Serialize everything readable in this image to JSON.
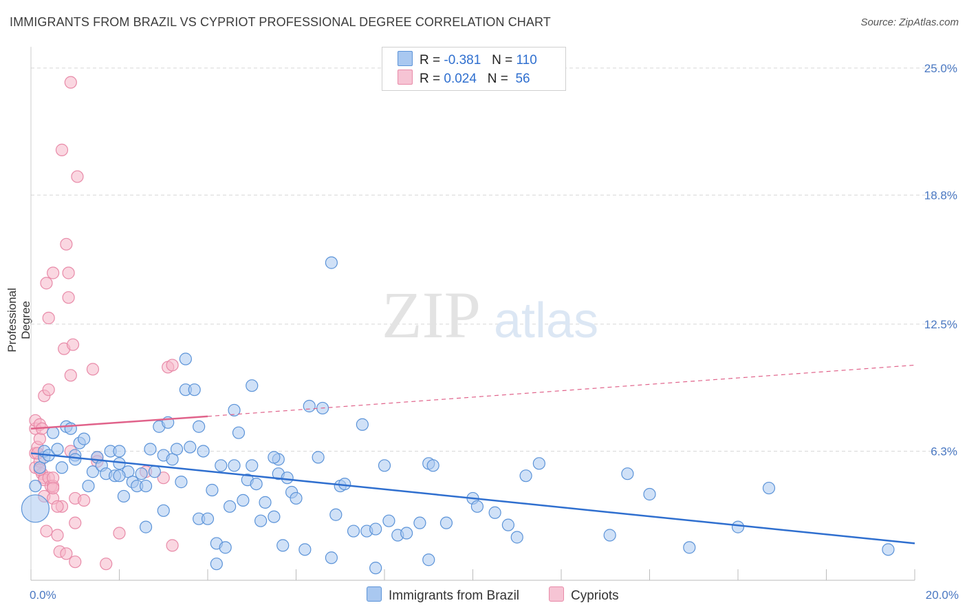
{
  "title": "IMMIGRANTS FROM BRAZIL VS CYPRIOT PROFESSIONAL DEGREE CORRELATION CHART",
  "source": "Source: ZipAtlas.com",
  "watermark": {
    "zip": "ZIP",
    "atlas": "atlas"
  },
  "colors": {
    "blue_fill": "#a9c8f0",
    "blue_stroke": "#5b93d8",
    "blue_line": "#2f6fcf",
    "pink_fill": "#f6b6c9",
    "pink_stroke": "#e88aa8",
    "pink_line": "#e0628a",
    "tick_text": "#4a78c2",
    "grid": "#d8d8d8"
  },
  "legend": {
    "rows": [
      {
        "r_label": "R =",
        "r_value": "-0.381",
        "n_label": "N =",
        "n_value": "110"
      },
      {
        "r_label": "R =",
        "r_value": "0.024",
        "n_label": "N =",
        "n_value": "56"
      }
    ]
  },
  "bottom_legend": {
    "series_a": "Immigrants from Brazil",
    "series_b": "Cypriots"
  },
  "chart_data": {
    "type": "scatter",
    "title": "IMMIGRANTS FROM BRAZIL VS CYPRIOT PROFESSIONAL DEGREE CORRELATION CHART",
    "xlabel": "",
    "ylabel": "Professional Degree",
    "xlim": [
      0,
      20
    ],
    "ylim": [
      0,
      25.8
    ],
    "x_tick_labels": [
      "0.0%",
      "20.0%"
    ],
    "y_ticks": [
      6.3,
      12.5,
      18.8,
      25.0
    ],
    "y_tick_labels": [
      "6.3%",
      "12.5%",
      "18.8%",
      "25.0%"
    ],
    "legend_position": "top-center",
    "grid": true,
    "series": [
      {
        "name": "Immigrants from Brazil",
        "r": -0.381,
        "n": 110,
        "trend": {
          "x0": 0.0,
          "y0": 6.2,
          "x1": 20.0,
          "y1": 1.8
        },
        "points": [
          [
            0.1,
            3.5
          ],
          [
            0.1,
            4.6
          ],
          [
            0.2,
            5.5
          ],
          [
            0.3,
            6.0
          ],
          [
            0.3,
            6.3
          ],
          [
            0.4,
            6.1
          ],
          [
            0.5,
            7.2
          ],
          [
            0.6,
            6.4
          ],
          [
            0.7,
            5.5
          ],
          [
            0.8,
            7.5
          ],
          [
            0.9,
            7.4
          ],
          [
            1.0,
            6.1
          ],
          [
            1.1,
            6.7
          ],
          [
            1.2,
            6.9
          ],
          [
            1.3,
            4.6
          ],
          [
            1.4,
            5.3
          ],
          [
            1.5,
            6.0
          ],
          [
            1.6,
            5.6
          ],
          [
            1.7,
            5.2
          ],
          [
            1.8,
            6.3
          ],
          [
            1.9,
            5.1
          ],
          [
            2.0,
            6.3
          ],
          [
            2.0,
            5.7
          ],
          [
            2.1,
            4.1
          ],
          [
            2.2,
            5.3
          ],
          [
            2.3,
            4.8
          ],
          [
            2.4,
            4.6
          ],
          [
            2.5,
            5.2
          ],
          [
            2.6,
            4.6
          ],
          [
            2.6,
            2.6
          ],
          [
            2.7,
            6.4
          ],
          [
            2.8,
            5.3
          ],
          [
            2.9,
            7.5
          ],
          [
            3.0,
            6.1
          ],
          [
            3.0,
            3.4
          ],
          [
            3.1,
            7.7
          ],
          [
            3.2,
            5.9
          ],
          [
            3.3,
            6.4
          ],
          [
            3.4,
            4.8
          ],
          [
            3.5,
            10.8
          ],
          [
            3.5,
            9.3
          ],
          [
            3.6,
            6.5
          ],
          [
            3.7,
            9.3
          ],
          [
            3.8,
            7.5
          ],
          [
            3.8,
            3.0
          ],
          [
            3.9,
            6.3
          ],
          [
            4.0,
            3.0
          ],
          [
            4.1,
            4.4
          ],
          [
            4.2,
            1.8
          ],
          [
            4.2,
            0.8
          ],
          [
            4.3,
            5.6
          ],
          [
            4.4,
            1.6
          ],
          [
            4.5,
            3.6
          ],
          [
            4.6,
            5.6
          ],
          [
            4.6,
            8.3
          ],
          [
            4.7,
            7.2
          ],
          [
            4.8,
            3.9
          ],
          [
            4.9,
            4.9
          ],
          [
            5.0,
            5.6
          ],
          [
            5.0,
            9.5
          ],
          [
            5.1,
            4.7
          ],
          [
            5.2,
            2.9
          ],
          [
            5.3,
            3.8
          ],
          [
            5.5,
            3.1
          ],
          [
            5.6,
            5.9
          ],
          [
            5.6,
            5.2
          ],
          [
            5.7,
            1.7
          ],
          [
            5.8,
            5.0
          ],
          [
            5.9,
            4.3
          ],
          [
            6.0,
            4.0
          ],
          [
            6.2,
            1.5
          ],
          [
            6.3,
            8.5
          ],
          [
            6.5,
            6.0
          ],
          [
            6.6,
            8.4
          ],
          [
            6.8,
            1.1
          ],
          [
            6.8,
            15.5
          ],
          [
            6.9,
            3.2
          ],
          [
            7.0,
            4.6
          ],
          [
            7.1,
            4.7
          ],
          [
            7.3,
            2.4
          ],
          [
            7.5,
            7.6
          ],
          [
            7.6,
            2.4
          ],
          [
            7.8,
            2.5
          ],
          [
            7.8,
            0.6
          ],
          [
            8.0,
            5.6
          ],
          [
            8.1,
            2.9
          ],
          [
            8.3,
            2.2
          ],
          [
            8.5,
            2.3
          ],
          [
            8.8,
            2.8
          ],
          [
            9.0,
            1.0
          ],
          [
            9.0,
            5.7
          ],
          [
            9.1,
            5.6
          ],
          [
            9.4,
            2.8
          ],
          [
            10.0,
            4.0
          ],
          [
            10.1,
            3.6
          ],
          [
            10.5,
            3.3
          ],
          [
            10.8,
            2.7
          ],
          [
            11.0,
            2.1
          ],
          [
            11.2,
            5.1
          ],
          [
            11.5,
            5.7
          ],
          [
            13.1,
            2.2
          ],
          [
            13.5,
            5.2
          ],
          [
            14.0,
            4.2
          ],
          [
            14.9,
            1.6
          ],
          [
            16.0,
            2.6
          ],
          [
            16.7,
            4.5
          ],
          [
            19.4,
            1.5
          ],
          [
            2.0,
            5.1
          ],
          [
            1.0,
            5.9
          ],
          [
            5.5,
            6.0
          ]
        ]
      },
      {
        "name": "Cypriots",
        "r": 0.024,
        "n": 56,
        "trend": {
          "x0": 0.0,
          "y0": 7.4,
          "x1": 4.0,
          "y1": 8.0
        },
        "trend_dashed": {
          "x0": 4.0,
          "y0": 8.0,
          "x1": 20.0,
          "y1": 10.5
        },
        "points": [
          [
            0.1,
            5.5
          ],
          [
            0.1,
            6.2
          ],
          [
            0.1,
            7.4
          ],
          [
            0.1,
            7.8
          ],
          [
            0.15,
            6.5
          ],
          [
            0.2,
            5.8
          ],
          [
            0.2,
            7.6
          ],
          [
            0.2,
            6.9
          ],
          [
            0.25,
            5.2
          ],
          [
            0.3,
            5.0
          ],
          [
            0.3,
            4.9
          ],
          [
            0.3,
            4.1
          ],
          [
            0.3,
            9.0
          ],
          [
            0.35,
            2.4
          ],
          [
            0.35,
            14.5
          ],
          [
            0.4,
            5.0
          ],
          [
            0.4,
            9.3
          ],
          [
            0.4,
            12.8
          ],
          [
            0.45,
            4.6
          ],
          [
            0.5,
            4.6
          ],
          [
            0.5,
            5.0
          ],
          [
            0.5,
            4.0
          ],
          [
            0.5,
            15.0
          ],
          [
            0.6,
            2.2
          ],
          [
            0.65,
            1.4
          ],
          [
            0.7,
            3.6
          ],
          [
            0.7,
            21.0
          ],
          [
            0.75,
            11.3
          ],
          [
            0.8,
            16.4
          ],
          [
            0.8,
            1.3
          ],
          [
            0.85,
            15.0
          ],
          [
            0.85,
            13.8
          ],
          [
            0.9,
            10.0
          ],
          [
            0.9,
            6.3
          ],
          [
            0.95,
            11.5
          ],
          [
            1.0,
            4.0
          ],
          [
            1.0,
            2.8
          ],
          [
            1.0,
            0.9
          ],
          [
            1.05,
            19.7
          ],
          [
            1.2,
            3.9
          ],
          [
            0.9,
            24.3
          ],
          [
            1.4,
            10.3
          ],
          [
            1.5,
            6.0
          ],
          [
            1.7,
            0.8
          ],
          [
            2.0,
            2.3
          ],
          [
            2.6,
            5.3
          ],
          [
            3.0,
            5.0
          ],
          [
            3.1,
            10.4
          ],
          [
            3.2,
            10.5
          ],
          [
            3.2,
            1.7
          ],
          [
            0.15,
            6.2
          ],
          [
            0.25,
            7.4
          ],
          [
            0.5,
            4.5
          ],
          [
            0.6,
            3.6
          ],
          [
            1.5,
            5.8
          ],
          [
            0.2,
            5.4
          ]
        ]
      }
    ]
  }
}
